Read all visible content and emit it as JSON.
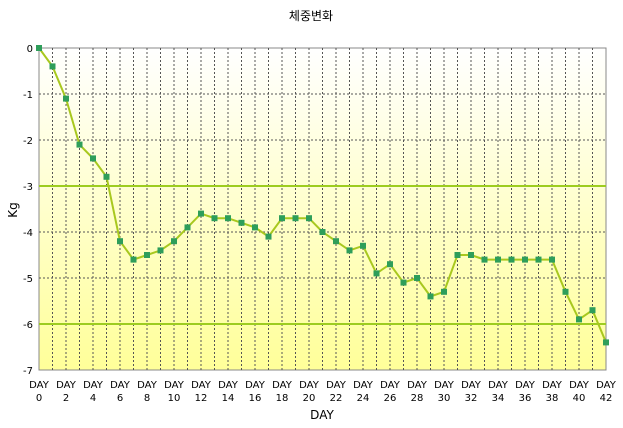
{
  "chart_data": {
    "type": "line",
    "title": "체중변화",
    "xlabel": "DAY",
    "ylabel": "Kg",
    "ylim": [
      -7,
      0
    ],
    "yticks": [
      0,
      -1,
      -2,
      -3,
      -4,
      -5,
      -6,
      -7
    ],
    "xlim": [
      0,
      42
    ],
    "x_tick_prefix": "DAY",
    "x_tick_values": [
      0,
      2,
      4,
      6,
      8,
      10,
      12,
      14,
      16,
      18,
      20,
      22,
      24,
      26,
      28,
      30,
      32,
      34,
      36,
      38,
      40,
      42
    ],
    "grid": true,
    "reference_lines": [
      -3,
      -6
    ],
    "colors": {
      "line": "#a8c81e",
      "marker": "#2e9e5a",
      "reference": "#9dcc20",
      "grid": "#555555",
      "background_top": "#ffffff",
      "background_bottom": "#ffff99"
    },
    "series": [
      {
        "x": [
          0,
          1,
          2,
          3,
          4,
          5,
          6,
          7,
          8,
          9,
          10,
          11,
          12,
          13,
          14,
          15,
          16,
          17,
          18,
          19,
          20,
          21,
          22,
          23,
          24,
          25,
          26,
          27,
          28,
          29,
          30,
          31,
          32,
          33,
          34,
          35,
          36,
          37,
          38,
          39,
          40,
          41,
          42
        ],
        "values": [
          0,
          -0.4,
          -1.1,
          -2.1,
          -2.4,
          -2.8,
          -4.2,
          -4.6,
          -4.5,
          -4.4,
          -4.2,
          -3.9,
          -3.6,
          -3.7,
          -3.7,
          -3.8,
          -3.9,
          -4.1,
          -3.7,
          -3.7,
          -3.7,
          -4.0,
          -4.2,
          -4.4,
          -4.3,
          -4.9,
          -4.7,
          -5.1,
          -5.0,
          -5.4,
          -5.3,
          -4.5,
          -4.5,
          -4.6,
          -4.6,
          -4.6,
          -4.6,
          -4.6,
          -4.6,
          -5.3,
          -5.9,
          -5.7,
          -6.4
        ]
      }
    ]
  }
}
